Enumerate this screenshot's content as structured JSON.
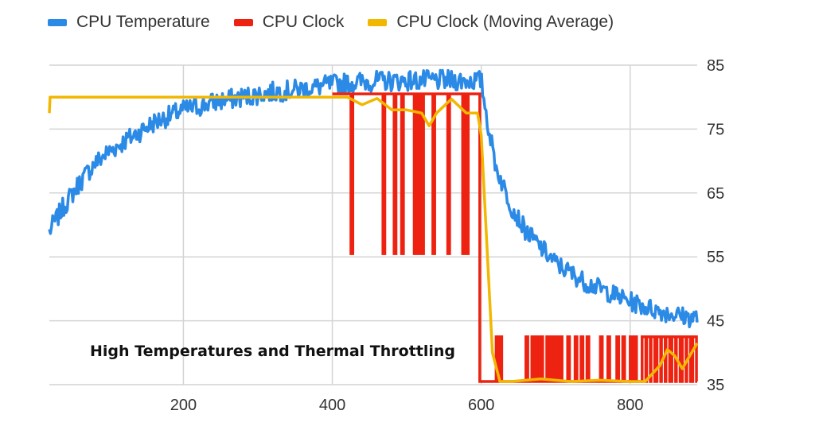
{
  "chart_data": {
    "type": "line",
    "legend_position": "top",
    "grid": true,
    "x_axis": {
      "range": [
        20,
        890
      ],
      "ticks": [
        200,
        400,
        600,
        800
      ]
    },
    "y_axis": {
      "side": "right",
      "range": [
        35,
        85
      ],
      "ticks": [
        85,
        75,
        65,
        55,
        45,
        35
      ]
    },
    "annotation": "High Temperatures and Thermal Throttling",
    "series": [
      {
        "name": "CPU Temperature",
        "color": "#2b8ae6",
        "x": [
          20,
          40,
          60,
          80,
          100,
          120,
          140,
          160,
          180,
          200,
          220,
          240,
          260,
          280,
          300,
          320,
          340,
          360,
          380,
          400,
          420,
          440,
          460,
          480,
          500,
          520,
          540,
          560,
          580,
          600,
          610,
          620,
          640,
          660,
          680,
          700,
          720,
          740,
          760,
          780,
          800,
          820,
          840,
          860,
          880,
          890
        ],
        "values": [
          59,
          63,
          66.5,
          69.5,
          71.5,
          73,
          74.5,
          76,
          77,
          78,
          78.5,
          79.2,
          79.6,
          80,
          80.4,
          80.8,
          81,
          81.3,
          81.6,
          82,
          82.2,
          82.4,
          82.5,
          82.5,
          82.6,
          82.6,
          82.6,
          82.6,
          82.6,
          82.6,
          75,
          69,
          63,
          59,
          56.5,
          54,
          52.5,
          51,
          50,
          49,
          48,
          47.2,
          46.5,
          46,
          45.5,
          45.5
        ]
      },
      {
        "name": "CPU Clock",
        "color": "#ee2211",
        "segments_top": 80.5,
        "segments_low": 55.5,
        "dips_x": [
          425,
          468,
          483,
          493,
          510,
          515,
          520,
          535,
          555,
          575,
          580
        ],
        "after_throttle_top": 42.5,
        "after_throttle_low": 35.5,
        "drop_x": 598
      },
      {
        "name": "CPU Clock (Moving Average)",
        "color": "#f2b700",
        "x": [
          20,
          21,
          400,
          420,
          440,
          460,
          480,
          500,
          520,
          530,
          540,
          560,
          580,
          595,
          600,
          615,
          625,
          640,
          680,
          720,
          760,
          800,
          820,
          840,
          850,
          860,
          870,
          880,
          890
        ],
        "values": [
          77.5,
          80,
          80,
          80,
          78.8,
          79.8,
          78,
          78,
          77.5,
          75.5,
          77.5,
          79.7,
          77.5,
          77.5,
          74,
          40,
          35.5,
          35.5,
          35.9,
          35.5,
          35.7,
          35.5,
          35.5,
          38,
          40.5,
          39.5,
          37.5,
          39.5,
          41.5
        ]
      }
    ]
  }
}
